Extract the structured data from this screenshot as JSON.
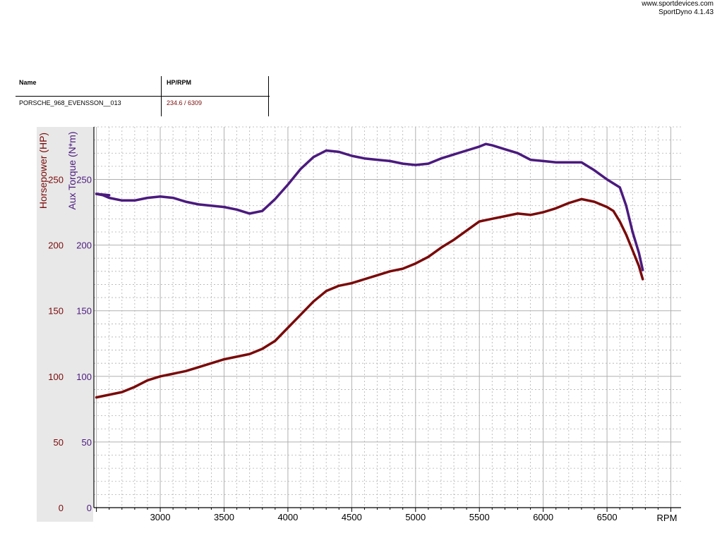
{
  "header": {
    "website": "www.sportdevices.com",
    "software": "SportDyno 4.1.43"
  },
  "run_table": {
    "columns": [
      "Name",
      "HP/RPM"
    ],
    "rows": [
      {
        "name": "PORSCHE_968_EVENSSON__013",
        "hp_rpm": "234.6 / 6309"
      }
    ]
  },
  "colors": {
    "horsepower": "#7a0a0a",
    "torque": "#4b1a7e",
    "grid": "#b0b0b0",
    "axis_panel": "#e8e8e8"
  },
  "chart_data": {
    "type": "line",
    "xlabel": "RPM",
    "xlim": [
      2480,
      7080
    ],
    "x_ticks": [
      3000,
      3500,
      4000,
      4500,
      5000,
      5500,
      6000,
      6500
    ],
    "y_left_label": "Horsepower (HP)",
    "y_right_label": "Aux Torque (N*m)",
    "ylim": [
      0,
      290
    ],
    "y_ticks": [
      0,
      50,
      100,
      150,
      200,
      250
    ],
    "grid": true,
    "series": [
      {
        "name": "Horsepower (HP)",
        "axis": "left",
        "points": [
          [
            2500,
            84
          ],
          [
            2600,
            86
          ],
          [
            2700,
            88
          ],
          [
            2800,
            92
          ],
          [
            2900,
            97
          ],
          [
            3000,
            100
          ],
          [
            3100,
            102
          ],
          [
            3200,
            104
          ],
          [
            3300,
            107
          ],
          [
            3400,
            110
          ],
          [
            3500,
            113
          ],
          [
            3600,
            115
          ],
          [
            3700,
            117
          ],
          [
            3800,
            121
          ],
          [
            3900,
            127
          ],
          [
            4000,
            137
          ],
          [
            4100,
            147
          ],
          [
            4200,
            157
          ],
          [
            4300,
            165
          ],
          [
            4400,
            169
          ],
          [
            4500,
            171
          ],
          [
            4600,
            174
          ],
          [
            4700,
            177
          ],
          [
            4800,
            180
          ],
          [
            4900,
            182
          ],
          [
            5000,
            186
          ],
          [
            5100,
            191
          ],
          [
            5200,
            198
          ],
          [
            5300,
            204
          ],
          [
            5400,
            211
          ],
          [
            5500,
            218
          ],
          [
            5600,
            220
          ],
          [
            5700,
            222
          ],
          [
            5800,
            224
          ],
          [
            5900,
            223
          ],
          [
            6000,
            225
          ],
          [
            6100,
            228
          ],
          [
            6200,
            232
          ],
          [
            6300,
            235
          ],
          [
            6400,
            233
          ],
          [
            6500,
            229
          ],
          [
            6550,
            226
          ],
          [
            6600,
            218
          ],
          [
            6650,
            208
          ],
          [
            6700,
            196
          ],
          [
            6750,
            184
          ],
          [
            6780,
            174
          ]
        ]
      },
      {
        "name": "Aux Torque (N*m)",
        "axis": "left",
        "points": [
          [
            2500,
            239
          ],
          [
            2550,
            238
          ],
          [
            2600,
            236
          ],
          [
            2700,
            234
          ],
          [
            2800,
            234
          ],
          [
            2900,
            236
          ],
          [
            3000,
            237
          ],
          [
            3100,
            236
          ],
          [
            3200,
            233
          ],
          [
            3300,
            231
          ],
          [
            3400,
            230
          ],
          [
            3500,
            229
          ],
          [
            3600,
            227
          ],
          [
            3700,
            224
          ],
          [
            3800,
            226
          ],
          [
            3900,
            235
          ],
          [
            4000,
            246
          ],
          [
            4100,
            258
          ],
          [
            4200,
            267
          ],
          [
            4300,
            272
          ],
          [
            4400,
            271
          ],
          [
            4500,
            268
          ],
          [
            4600,
            266
          ],
          [
            4700,
            265
          ],
          [
            4800,
            264
          ],
          [
            4900,
            262
          ],
          [
            5000,
            261
          ],
          [
            5100,
            262
          ],
          [
            5200,
            266
          ],
          [
            5300,
            269
          ],
          [
            5400,
            272
          ],
          [
            5500,
            275
          ],
          [
            5550,
            277
          ],
          [
            5600,
            276
          ],
          [
            5700,
            273
          ],
          [
            5800,
            270
          ],
          [
            5900,
            265
          ],
          [
            6000,
            264
          ],
          [
            6100,
            263
          ],
          [
            6200,
            263
          ],
          [
            6300,
            263
          ],
          [
            6400,
            257
          ],
          [
            6500,
            250
          ],
          [
            6550,
            247
          ],
          [
            6600,
            244
          ],
          [
            6650,
            230
          ],
          [
            6700,
            210
          ],
          [
            6750,
            194
          ],
          [
            6780,
            181
          ]
        ]
      }
    ]
  }
}
